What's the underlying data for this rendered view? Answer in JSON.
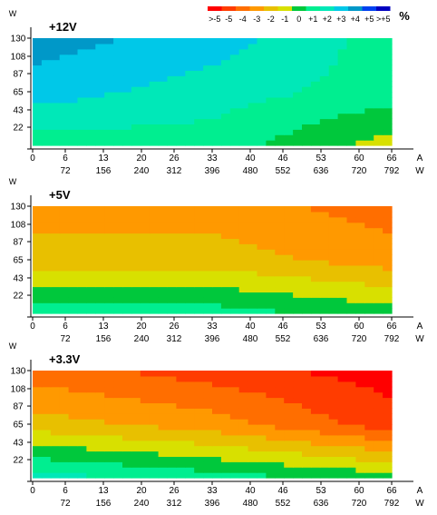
{
  "legend": {
    "unit": "%",
    "labels": [
      ">-5",
      "-5",
      "-4",
      "-3",
      "-2",
      "-1",
      "0",
      "+1",
      "+2",
      "+3",
      "+4",
      "+5",
      ">+5"
    ],
    "colors": [
      "#ff0000",
      "#ff3c00",
      "#ff6e00",
      "#ff9900",
      "#e8c000",
      "#d8e000",
      "#00c83c",
      "#00ee90",
      "#00e8b8",
      "#00c8e8",
      "#0098c8",
      "#0040f0",
      "#0000c0"
    ]
  },
  "chart_data": [
    {
      "type": "heatmap",
      "title": "+12V",
      "x_axis": {
        "primary_ticks": [
          "0",
          "6",
          "13",
          "20",
          "26",
          "33",
          "40",
          "46",
          "53",
          "60",
          "66"
        ],
        "primary_unit": "A",
        "secondary_ticks": [
          "72",
          "156",
          "240",
          "312",
          "396",
          "480",
          "552",
          "636",
          "720",
          "792"
        ],
        "secondary_unit": "W",
        "range": [
          0,
          66
        ]
      },
      "y_axis": {
        "unit": "W",
        "ticks": [
          "22",
          "43",
          "65",
          "87",
          "108",
          "130"
        ],
        "range": [
          0,
          130
        ]
      },
      "x_values": [
        0,
        33,
        66
      ],
      "y_values": [
        0,
        65,
        130
      ],
      "deviation_percent": [
        [
          1,
          1,
          -1
        ],
        [
          3,
          2,
          1
        ],
        [
          4,
          3,
          1
        ]
      ]
    },
    {
      "type": "heatmap",
      "title": "+5V",
      "x_axis": {
        "primary_ticks": [
          "0",
          "6",
          "13",
          "20",
          "26",
          "33",
          "40",
          "46",
          "53",
          "60",
          "66"
        ],
        "primary_unit": "A",
        "secondary_ticks": [
          "72",
          "156",
          "240",
          "312",
          "396",
          "480",
          "552",
          "636",
          "720",
          "792"
        ],
        "secondary_unit": "W",
        "range": [
          0,
          66
        ]
      },
      "y_axis": {
        "unit": "W",
        "ticks": [
          "22",
          "43",
          "65",
          "87",
          "108",
          "130"
        ],
        "range": [
          0,
          130
        ]
      },
      "x_values": [
        0,
        33,
        66
      ],
      "y_values": [
        0,
        65,
        130
      ],
      "deviation_percent": [
        [
          1,
          1,
          0
        ],
        [
          -2,
          -2,
          -3
        ],
        [
          -3,
          -3,
          -4
        ]
      ]
    },
    {
      "type": "heatmap",
      "title": "+3.3V",
      "x_axis": {
        "primary_ticks": [
          "0",
          "6",
          "13",
          "20",
          "26",
          "33",
          "40",
          "46",
          "53",
          "60",
          "66"
        ],
        "primary_unit": "A",
        "secondary_ticks": [
          "72",
          "156",
          "240",
          "312",
          "396",
          "480",
          "552",
          "636",
          "720",
          "792"
        ],
        "secondary_unit": "W",
        "range": [
          0,
          66
        ]
      },
      "y_axis": {
        "unit": "W",
        "ticks": [
          "22",
          "43",
          "65",
          "87",
          "108",
          "130"
        ],
        "range": [
          0,
          130
        ]
      },
      "x_values": [
        0,
        33,
        66
      ],
      "y_values": [
        0,
        65,
        130
      ],
      "deviation_percent": [
        [
          2,
          1,
          0
        ],
        [
          -2,
          -3,
          -5
        ],
        [
          -4,
          -5,
          -6
        ]
      ]
    }
  ]
}
